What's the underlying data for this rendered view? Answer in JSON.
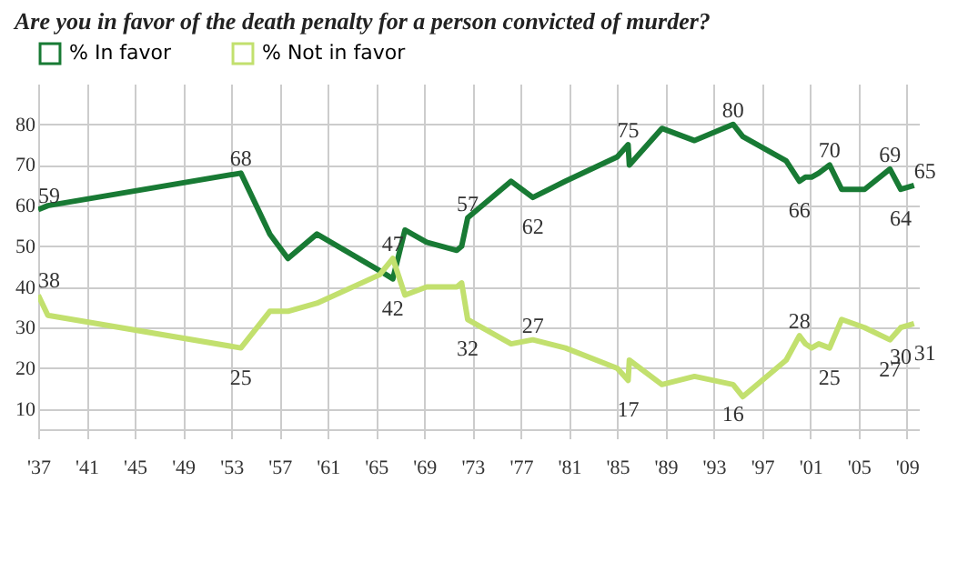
{
  "chart_data": {
    "type": "line",
    "title": "Are you in favor of the death penalty for a person convicted of murder?",
    "x": [
      1937,
      1937.8,
      1953.8,
      1956.2,
      1957.7,
      1960.1,
      1965.3,
      1966.4,
      1967.4,
      1969.2,
      1971.7,
      1972.1,
      1972.6,
      1976.2,
      1978,
      1980.7,
      1985,
      1985.9,
      1986,
      1988.7,
      1991.4,
      1994.6,
      1995.4,
      1999,
      2000.1,
      2000.6,
      2001.1,
      2001.7,
      2002.6,
      2003.6,
      2005.5,
      2007.6,
      2008.5,
      2009.6
    ],
    "series": [
      {
        "name": "% In favor",
        "color": "#187a34",
        "values": [
          59,
          60,
          68,
          53,
          47,
          53,
          44,
          42,
          54,
          51,
          49,
          50,
          57,
          66,
          62,
          66,
          72,
          75,
          70,
          79,
          76,
          80,
          77,
          71,
          66,
          67,
          67,
          68,
          70,
          64,
          64,
          69,
          64,
          65
        ],
        "value_labels": [
          "59",
          null,
          "68",
          null,
          null,
          null,
          null,
          "42",
          null,
          null,
          null,
          null,
          "57",
          null,
          "62",
          null,
          null,
          "75",
          null,
          null,
          null,
          "80",
          null,
          null,
          "66",
          null,
          null,
          null,
          "70",
          null,
          null,
          "69",
          "64",
          "65"
        ]
      },
      {
        "name": "% Not in favor",
        "color": "#c2e06e",
        "values": [
          38,
          33,
          25,
          34,
          34,
          36,
          43,
          47,
          38,
          40,
          40,
          41,
          32,
          26,
          27,
          25,
          20,
          17,
          22,
          16,
          18,
          16,
          13,
          22,
          28,
          26,
          25,
          26,
          25,
          32,
          30,
          27,
          30,
          31
        ],
        "value_labels": [
          "38",
          null,
          "25",
          null,
          null,
          null,
          null,
          "47",
          null,
          null,
          null,
          null,
          "32",
          null,
          "27",
          null,
          null,
          "17",
          null,
          null,
          null,
          "16",
          null,
          null,
          "28",
          null,
          null,
          null,
          "25",
          null,
          null,
          "27",
          "30",
          "31"
        ]
      }
    ],
    "xlim": [
      1937,
      2010
    ],
    "xticks": [
      {
        "value": 1937,
        "label": "'37"
      },
      {
        "value": 1941,
        "label": "'41"
      },
      {
        "value": 1945,
        "label": "'45"
      },
      {
        "value": 1949,
        "label": "'49"
      },
      {
        "value": 1953,
        "label": "'53"
      },
      {
        "value": 1957,
        "label": "'57"
      },
      {
        "value": 1961,
        "label": "'61"
      },
      {
        "value": 1965,
        "label": "'65"
      },
      {
        "value": 1969,
        "label": "'69"
      },
      {
        "value": 1973,
        "label": "'73"
      },
      {
        "value": 1977,
        "label": "'77"
      },
      {
        "value": 1981,
        "label": "'81"
      },
      {
        "value": 1985,
        "label": "'85"
      },
      {
        "value": 1989,
        "label": "'89"
      },
      {
        "value": 1993,
        "label": "'93"
      },
      {
        "value": 1997,
        "label": "'97"
      },
      {
        "value": 2001,
        "label": "'01"
      },
      {
        "value": 2005,
        "label": "'05"
      },
      {
        "value": 2009,
        "label": "'09"
      }
    ],
    "ylim": [
      5,
      90
    ],
    "yticks": [
      10,
      20,
      30,
      40,
      50,
      60,
      70,
      80
    ],
    "grid": true,
    "legend": "top left",
    "marker": "none",
    "line_style": "solid"
  }
}
